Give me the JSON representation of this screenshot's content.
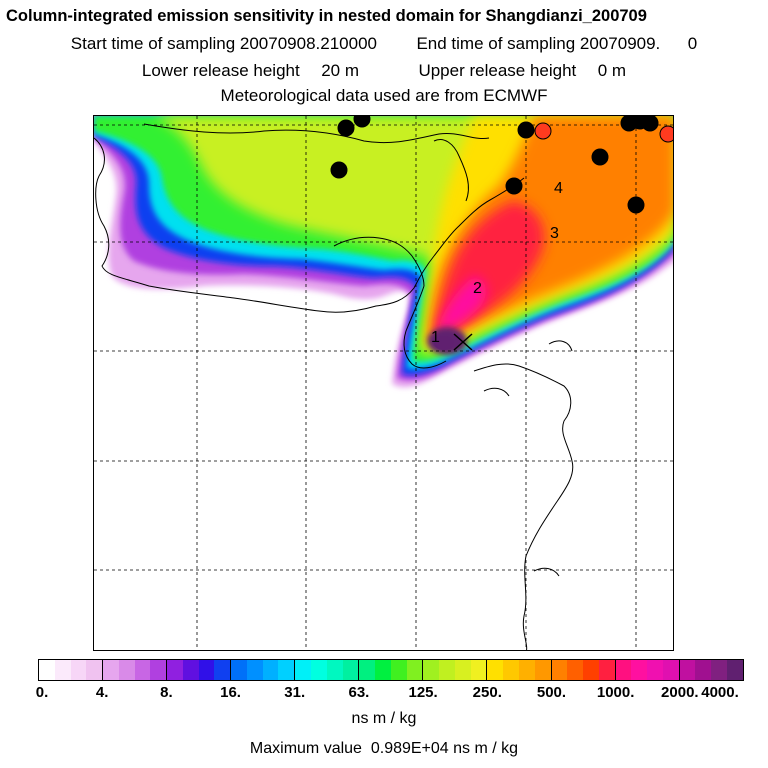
{
  "header": {
    "title": "Column-integrated emission sensitivity in nested domain for Shangdianzi_200709",
    "start_label": "Start time of sampling 20070908.210000",
    "end_label": "End time of sampling 20070909.",
    "end_value": "0",
    "lower_label": "Lower release height",
    "lower_value": "20 m",
    "upper_label": "Upper release height",
    "upper_value": "0 m",
    "met_label": "Meteorological data used are from ECMWF"
  },
  "map": {
    "day_labels": [
      "1",
      "2",
      "3",
      "4"
    ],
    "marker_colors": {
      "black": "#000000",
      "red": "#ff3b1f"
    }
  },
  "colorbar": {
    "tick_labels": [
      "0.",
      "4.",
      "8.",
      "16.",
      "31.",
      "63.",
      "125.",
      "250.",
      "500.",
      "1000.",
      "2000.",
      "4000."
    ],
    "colors": [
      "#ffffff",
      "#fbeafb",
      "#f7d6f7",
      "#f0c2f0",
      "#e6a6ee",
      "#d98ae8",
      "#c866e4",
      "#b040e0",
      "#9020e0",
      "#6010e0",
      "#3010e8",
      "#1040f0",
      "#0070f8",
      "#0090ff",
      "#00b0ff",
      "#00d0ff",
      "#00f0f8",
      "#00ffe0",
      "#00f8c0",
      "#00f0a0",
      "#00f080",
      "#00f040",
      "#40f020",
      "#80f020",
      "#a0f020",
      "#c0f020",
      "#d8f020",
      "#f0f020",
      "#ffe000",
      "#ffc800",
      "#ffb000",
      "#ff9800",
      "#ff8000",
      "#ff6000",
      "#ff4000",
      "#ff2040",
      "#ff1080",
      "#ff10a0",
      "#f010b0",
      "#e010b0",
      "#c010a0",
      "#a01090",
      "#802080",
      "#602070"
    ],
    "units": "ns m / kg",
    "max_label": "Maximum value",
    "max_value": "0.989E+04",
    "max_units": "ns m / kg"
  }
}
